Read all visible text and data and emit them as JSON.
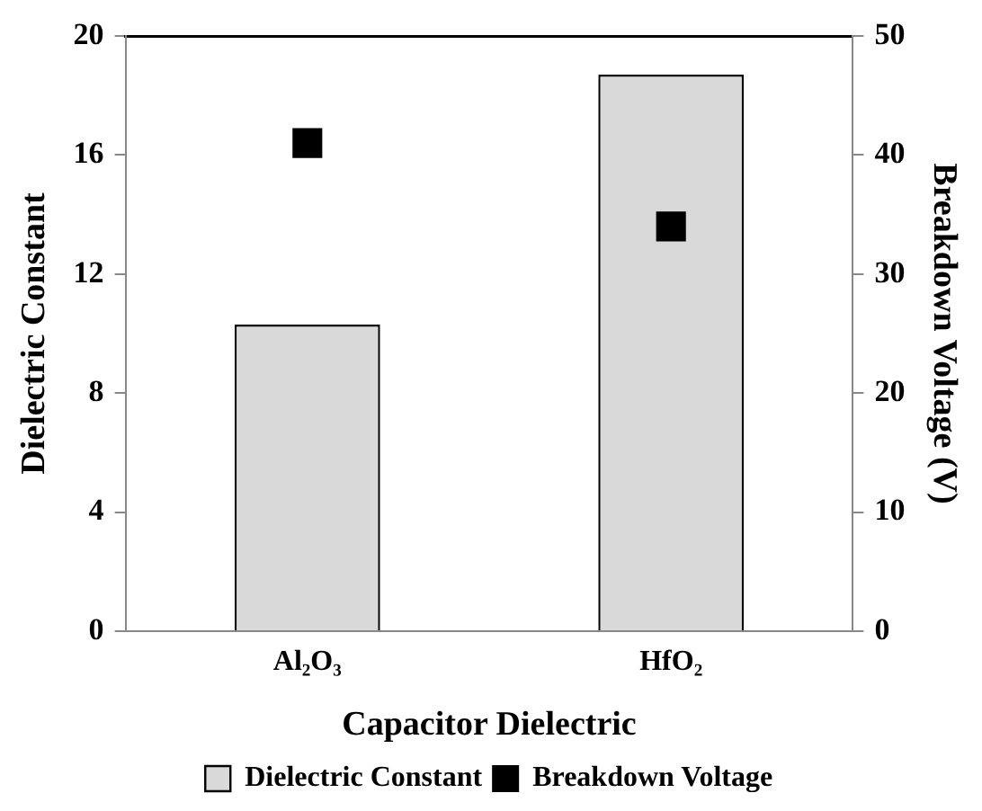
{
  "chart_data": {
    "type": "bar",
    "xlabel": "Capacitor Dielectric",
    "ylabel": "Dielectric Constant",
    "y2label": "Breakdown Voltage (V)",
    "categories": [
      "Al₂O₃",
      "HfO₂"
    ],
    "series": [
      {
        "name": "Dielectric Constant",
        "color": "#d9d9d9",
        "values": [
          10.3,
          18.7
        ]
      },
      {
        "name": "Breakdown Voltage",
        "type": "scatter",
        "axis": "y2",
        "color": "#000000",
        "values": [
          41.0,
          34.0
        ]
      }
    ],
    "ylim": [
      0,
      20
    ],
    "yticks": [
      0,
      4,
      8,
      12,
      16,
      20
    ],
    "y2lim": [
      0,
      50
    ],
    "y2ticks": [
      0,
      10,
      20,
      30,
      40,
      50
    ],
    "grid": false,
    "legend": "bottom",
    "marker": "square"
  }
}
